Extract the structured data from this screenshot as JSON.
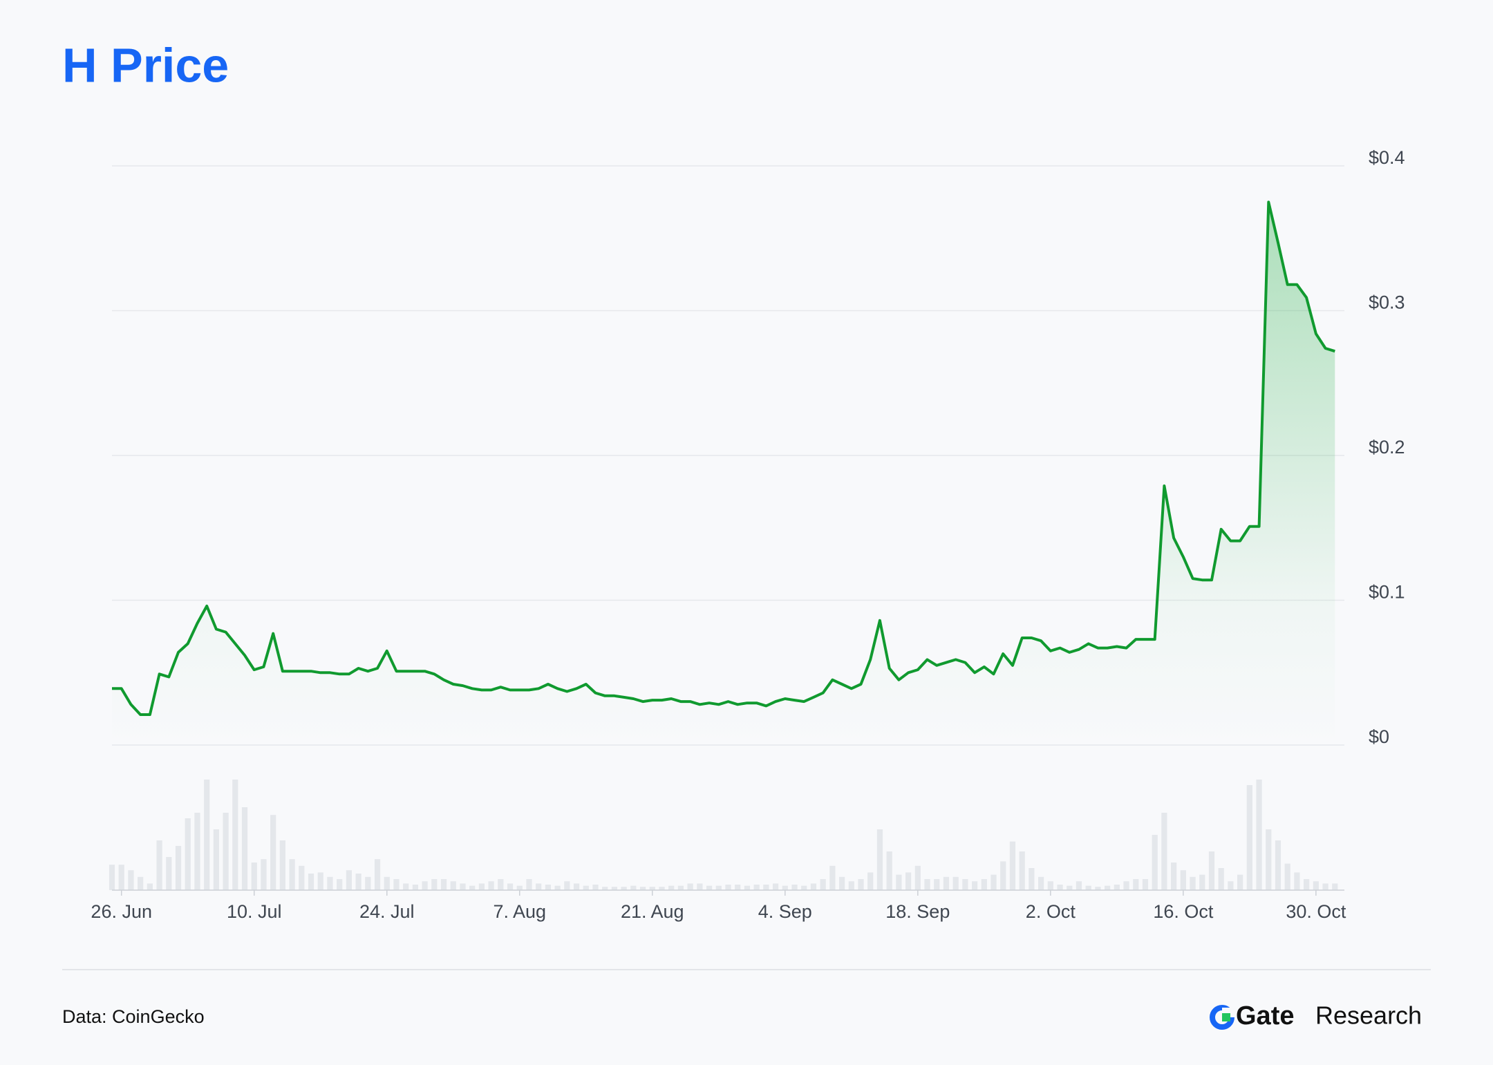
{
  "chart_data": {
    "type": "line",
    "title": "H Price",
    "source": "Data: CoinGecko",
    "logo_text": "Gate",
    "logo_subtext": "Research",
    "x": [
      -1,
      0,
      1,
      2,
      3,
      4,
      5,
      6,
      7,
      8,
      9,
      10,
      11,
      12,
      13,
      14,
      15,
      16,
      17,
      18,
      19,
      20,
      21,
      22,
      23,
      24,
      25,
      26,
      27,
      28,
      29,
      30,
      31,
      32,
      33,
      34,
      35,
      36,
      37,
      38,
      39,
      40,
      41,
      42,
      43,
      44,
      45,
      46,
      47,
      48,
      49,
      50,
      51,
      52,
      53,
      54,
      55,
      56,
      57,
      58,
      59,
      60,
      61,
      62,
      63,
      64,
      65,
      66,
      67,
      68,
      69,
      70,
      71,
      72,
      73,
      74,
      75,
      76,
      77,
      78,
      79,
      80,
      81,
      82,
      83,
      84,
      85,
      86,
      87,
      88,
      89,
      90,
      91,
      92,
      93,
      94,
      95,
      96,
      97,
      98,
      99,
      100,
      101,
      102,
      103,
      104,
      105,
      106,
      107,
      108,
      109,
      110,
      111,
      112,
      113,
      114,
      115,
      116,
      117,
      118,
      119,
      120,
      121,
      122,
      123,
      124,
      125,
      126,
      127,
      128
    ],
    "series": [
      {
        "color": "#109a2f",
        "values": [
          0.039,
          0.039,
          0.028,
          0.021,
          0.021,
          0.049,
          0.047,
          0.064,
          0.07,
          0.084,
          0.096,
          0.08,
          0.078,
          0.07,
          0.062,
          0.052,
          0.054,
          0.077,
          0.051,
          0.051,
          0.051,
          0.051,
          0.05,
          0.05,
          0.049,
          0.049,
          0.053,
          0.051,
          0.053,
          0.065,
          0.051,
          0.051,
          0.051,
          0.051,
          0.049,
          0.045,
          0.042,
          0.041,
          0.039,
          0.038,
          0.038,
          0.04,
          0.038,
          0.038,
          0.038,
          0.039,
          0.042,
          0.039,
          0.037,
          0.039,
          0.042,
          0.036,
          0.034,
          0.034,
          0.033,
          0.032,
          0.03,
          0.031,
          0.031,
          0.032,
          0.03,
          0.03,
          0.028,
          0.029,
          0.028,
          0.03,
          0.028,
          0.029,
          0.029,
          0.027,
          0.03,
          0.032,
          0.031,
          0.03,
          0.033,
          0.036,
          0.045,
          0.042,
          0.039,
          0.042,
          0.059,
          0.086,
          0.053,
          0.045,
          0.05,
          0.052,
          0.059,
          0.055,
          0.057,
          0.059,
          0.057,
          0.05,
          0.054,
          0.049,
          0.063,
          0.055,
          0.074,
          0.074,
          0.072,
          0.065,
          0.067,
          0.064,
          0.066,
          0.07,
          0.067,
          0.067,
          0.068,
          0.067,
          0.073,
          0.073,
          0.073,
          0.179,
          0.143,
          0.13,
          0.115,
          0.114,
          0.114,
          0.149,
          0.141,
          0.141,
          0.151,
          0.151,
          0.375,
          0.347,
          0.318,
          0.318,
          0.309,
          0.284,
          0.274,
          0.272
        ]
      }
    ],
    "volume": {
      "color": "#e4e7eb",
      "values": [
        23,
        23,
        18,
        12,
        6,
        45,
        30,
        40,
        65,
        70,
        100,
        55,
        70,
        100,
        75,
        25,
        28,
        68,
        45,
        28,
        22,
        15,
        16,
        12,
        10,
        18,
        15,
        12,
        28,
        12,
        10,
        6,
        5,
        8,
        10,
        10,
        8,
        6,
        4,
        6,
        8,
        10,
        6,
        4,
        10,
        6,
        5,
        4,
        8,
        6,
        4,
        5,
        3,
        3,
        3,
        4,
        3,
        3,
        3,
        4,
        4,
        6,
        6,
        4,
        4,
        5,
        5,
        4,
        5,
        5,
        6,
        4,
        5,
        4,
        6,
        10,
        22,
        12,
        8,
        10,
        16,
        55,
        35,
        14,
        16,
        22,
        10,
        10,
        12,
        12,
        10,
        8,
        10,
        14,
        26,
        44,
        35,
        20,
        12,
        8,
        5,
        4,
        8,
        4,
        3,
        4,
        5,
        8,
        10,
        10,
        50,
        70,
        25,
        18,
        12,
        14,
        35,
        20,
        8,
        14,
        95,
        100,
        55,
        45,
        24,
        16,
        10,
        8,
        6,
        6
      ]
    },
    "xlim": [
      -1,
      129
    ],
    "xticks": [
      {
        "value": 0,
        "label": "26. Jun"
      },
      {
        "value": 14,
        "label": "10. Jul"
      },
      {
        "value": 28,
        "label": "24. Jul"
      },
      {
        "value": 42,
        "label": "7. Aug"
      },
      {
        "value": 56,
        "label": "21. Aug"
      },
      {
        "value": 70,
        "label": "4. Sep"
      },
      {
        "value": 84,
        "label": "18. Sep"
      },
      {
        "value": 98,
        "label": "2. Oct"
      },
      {
        "value": 112,
        "label": "16. Oct"
      },
      {
        "value": 126,
        "label": "30. Oct"
      }
    ],
    "ylim": [
      0,
      0.4
    ],
    "yticks": [
      {
        "value": 0,
        "label": "$0"
      },
      {
        "value": 0.1,
        "label": "$0.1"
      },
      {
        "value": 0.2,
        "label": "$0.2"
      },
      {
        "value": 0.3,
        "label": "$0.3"
      },
      {
        "value": 0.4,
        "label": "$0.4"
      }
    ],
    "grid": true
  }
}
